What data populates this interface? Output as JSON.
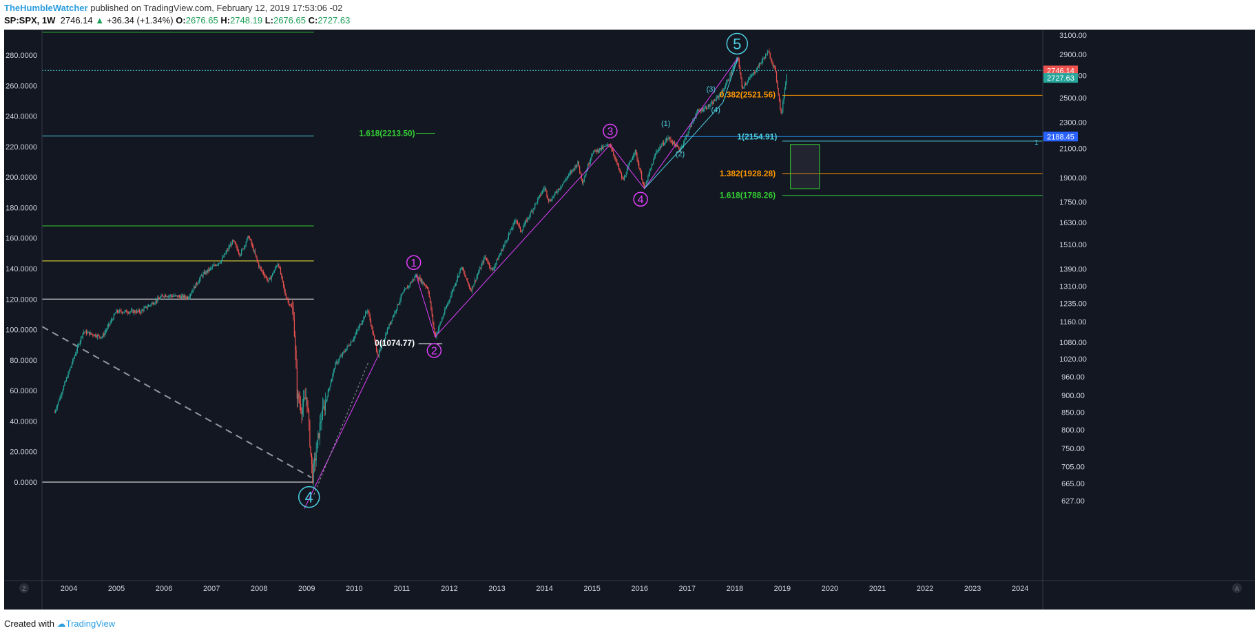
{
  "header": {
    "author": "TheHumbleWatcher",
    "published_text": " published on TradingView.com, February 12, 2019 17:53:06 -02",
    "symbol": "SP:SPX, 1W",
    "last": "2746.14",
    "change": "+36.34 (+1.34%)",
    "o_label": "O:",
    "o_value": "2676.65",
    "h_label": "H:",
    "h_value": "2748.19",
    "l_label": "L:",
    "l_value": "2676.65",
    "c_label": "C:",
    "c_value": "2727.63"
  },
  "footer": {
    "created_with": "Created with",
    "brand": "TradingView"
  },
  "colors": {
    "background": "#131722",
    "up": "#26a69a",
    "down": "#ef5350",
    "wave_cyan": "#4dd0e1",
    "wave_magenta": "#e040fb",
    "fib_orange": "#ff9800",
    "fib_green": "#33cc33",
    "fib_blue": "#2196f3",
    "price_red": "#ef5350"
  },
  "chart_data": {
    "type": "candlestick",
    "symbol": "SP:SPX",
    "interval": "1W",
    "left_axis": {
      "ticks": [
        "280.0000",
        "260.0000",
        "240.0000",
        "220.0000",
        "200.0000",
        "180.0000",
        "160.0000",
        "140.0000",
        "120.0000",
        "100.0000",
        "80.0000",
        "60.0000",
        "40.0000",
        "20.0000",
        "0.0000"
      ],
      "range": [
        0,
        280
      ]
    },
    "right_axis": {
      "scale": "log",
      "ticks": [
        "3100.00",
        "2900.00",
        "2700.00",
        "2500.00",
        "2300.00",
        "2100.00",
        "1900.00",
        "1750.00",
        "1630.00",
        "1510.00",
        "1390.00",
        "1310.00",
        "1235.00",
        "1160.00",
        "1080.00",
        "1020.00",
        "960.00",
        "900.00",
        "850.00",
        "800.00",
        "750.00",
        "705.00",
        "665.00",
        "627.00"
      ],
      "range": [
        610,
        3250
      ]
    },
    "x_axis": {
      "ticks": [
        "2004",
        "2005",
        "2006",
        "2007",
        "2008",
        "2009",
        "2010",
        "2011",
        "2012",
        "2013",
        "2014",
        "2015",
        "2016",
        "2017",
        "2018",
        "2019",
        "2020",
        "2021",
        "2022",
        "2023",
        "2024"
      ]
    },
    "price_labels": [
      {
        "value": "2746.14",
        "color": "#ef5350"
      },
      {
        "value": "2727.63",
        "color": "#26a69a"
      },
      {
        "value": "2188.45",
        "color": "#2962ff"
      }
    ],
    "price_anchors": [
      {
        "date": 2003.7,
        "price": 850
      },
      {
        "date": 2004.3,
        "price": 1120
      },
      {
        "date": 2004.7,
        "price": 1100
      },
      {
        "date": 2005.0,
        "price": 1200
      },
      {
        "date": 2005.5,
        "price": 1200
      },
      {
        "date": 2006.0,
        "price": 1270
      },
      {
        "date": 2006.5,
        "price": 1260
      },
      {
        "date": 2006.8,
        "price": 1360
      },
      {
        "date": 2007.2,
        "price": 1430
      },
      {
        "date": 2007.45,
        "price": 1530
      },
      {
        "date": 2007.6,
        "price": 1460
      },
      {
        "date": 2007.78,
        "price": 1555
      },
      {
        "date": 2008.0,
        "price": 1400
      },
      {
        "date": 2008.2,
        "price": 1330
      },
      {
        "date": 2008.4,
        "price": 1420
      },
      {
        "date": 2008.55,
        "price": 1270
      },
      {
        "date": 2008.72,
        "price": 1200
      },
      {
        "date": 2008.8,
        "price": 900
      },
      {
        "date": 2008.9,
        "price": 860
      },
      {
        "date": 2009.0,
        "price": 900
      },
      {
        "date": 2009.12,
        "price": 680
      },
      {
        "date": 2009.3,
        "price": 830
      },
      {
        "date": 2009.6,
        "price": 1000
      },
      {
        "date": 2010.0,
        "price": 1100
      },
      {
        "date": 2010.28,
        "price": 1210
      },
      {
        "date": 2010.5,
        "price": 1030
      },
      {
        "date": 2010.7,
        "price": 1130
      },
      {
        "date": 2011.0,
        "price": 1270
      },
      {
        "date": 2011.3,
        "price": 1360
      },
      {
        "date": 2011.55,
        "price": 1300
      },
      {
        "date": 2011.7,
        "price": 1100
      },
      {
        "date": 2011.9,
        "price": 1200
      },
      {
        "date": 2012.25,
        "price": 1400
      },
      {
        "date": 2012.45,
        "price": 1290
      },
      {
        "date": 2012.75,
        "price": 1450
      },
      {
        "date": 2012.9,
        "price": 1380
      },
      {
        "date": 2013.4,
        "price": 1650
      },
      {
        "date": 2013.5,
        "price": 1580
      },
      {
        "date": 2014.0,
        "price": 1840
      },
      {
        "date": 2014.1,
        "price": 1750
      },
      {
        "date": 2014.7,
        "price": 2000
      },
      {
        "date": 2014.8,
        "price": 1870
      },
      {
        "date": 2015.0,
        "price": 2070
      },
      {
        "date": 2015.38,
        "price": 2130
      },
      {
        "date": 2015.65,
        "price": 1880
      },
      {
        "date": 2015.9,
        "price": 2090
      },
      {
        "date": 2016.1,
        "price": 1830
      },
      {
        "date": 2016.35,
        "price": 2080
      },
      {
        "date": 2016.6,
        "price": 2180
      },
      {
        "date": 2016.85,
        "price": 2090
      },
      {
        "date": 2017.2,
        "price": 2380
      },
      {
        "date": 2017.5,
        "price": 2440
      },
      {
        "date": 2017.75,
        "price": 2560
      },
      {
        "date": 2018.07,
        "price": 2872
      },
      {
        "date": 2018.15,
        "price": 2590
      },
      {
        "date": 2018.4,
        "price": 2720
      },
      {
        "date": 2018.7,
        "price": 2930
      },
      {
        "date": 2018.85,
        "price": 2750
      },
      {
        "date": 2018.98,
        "price": 2350
      },
      {
        "date": 2019.1,
        "price": 2746
      }
    ],
    "horizontal_levels_left": [
      {
        "value": 295,
        "color": "#33cc33"
      },
      {
        "value": 227,
        "color": "#4dd0e1"
      },
      {
        "value": 168,
        "color": "#33cc33"
      },
      {
        "value": 145,
        "color": "#ffeb3b"
      },
      {
        "value": 120,
        "color": "#ffffff"
      },
      {
        "value": 0,
        "color": "#ffffff"
      }
    ],
    "fib_levels": [
      {
        "label": "1.618(2213.50)",
        "price": 2213.5,
        "color": "#33cc33"
      },
      {
        "label": "0.382(2521.56)",
        "price": 2521.56,
        "color": "#ff9800"
      },
      {
        "label": "1(2154.91)",
        "price": 2154.91,
        "color": "#4dd0e1"
      },
      {
        "label": "1.382(1928.28)",
        "price": 1928.28,
        "color": "#ff9800"
      },
      {
        "label": "1.618(1788.26)",
        "price": 1788.26,
        "color": "#33cc33"
      },
      {
        "label": "0(1074.77)",
        "price": 1074.77,
        "color": "#ffffff"
      }
    ],
    "wave_labels_major": [
      "1",
      "2",
      "3",
      "4"
    ],
    "wave_labels_primary": [
      "4",
      "5"
    ],
    "wave_labels_minor": [
      "(1)",
      "(2)",
      "(3)",
      "(4)"
    ],
    "fib_end_marker": "1",
    "axis_corner_left": "Z",
    "axis_corner_right": "A"
  }
}
